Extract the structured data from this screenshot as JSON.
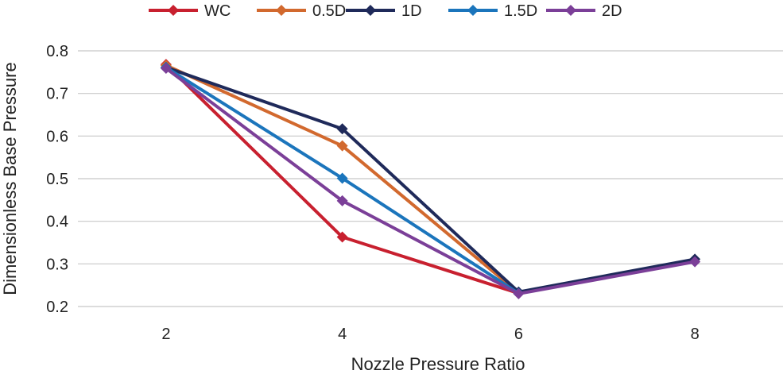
{
  "chart_data": {
    "type": "line",
    "title": "",
    "xlabel": "Nozzle Pressure Ratio",
    "ylabel": "Dimensionless Base Pressure",
    "x": [
      2,
      4,
      6,
      8
    ],
    "x_ticks": [
      "2",
      "4",
      "6",
      "8"
    ],
    "xlim": [
      1,
      9
    ],
    "ylim": [
      0.2,
      0.8
    ],
    "y_ticks": [
      "0.2",
      "0.3",
      "0.4",
      "0.5",
      "0.6",
      "0.7",
      "0.8"
    ],
    "grid": "horizontal",
    "legend_position": "top",
    "marker": "diamond",
    "series": [
      {
        "name": "WC",
        "color": "#C8202F",
        "values": [
          0.768,
          0.363,
          0.231,
          null
        ]
      },
      {
        "name": "0.5D",
        "color": "#D2692E",
        "values": [
          0.766,
          0.577,
          0.232,
          null
        ]
      },
      {
        "name": "1D",
        "color": "#1F2A5A",
        "values": [
          0.761,
          0.617,
          0.234,
          0.311
        ]
      },
      {
        "name": "1.5D",
        "color": "#1B75BC",
        "values": [
          0.761,
          0.501,
          0.231,
          null
        ]
      },
      {
        "name": "2D",
        "color": "#7B3F98",
        "values": [
          0.759,
          0.448,
          0.23,
          0.305
        ]
      }
    ]
  }
}
